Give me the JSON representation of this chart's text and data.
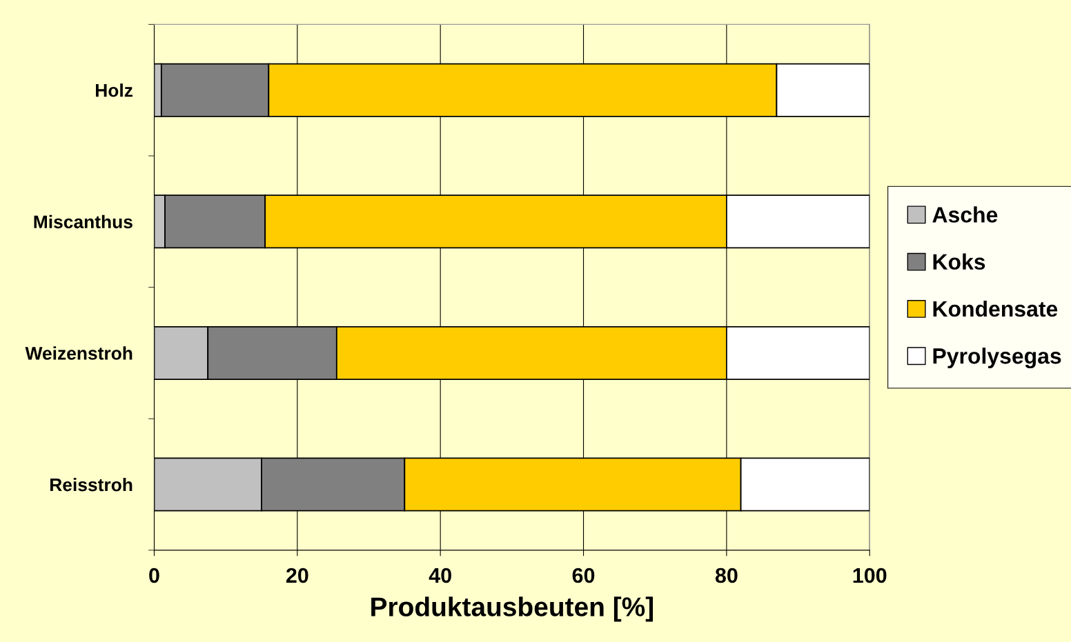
{
  "chart_data": {
    "type": "bar",
    "orientation": "horizontal",
    "stacked": true,
    "categories": [
      "Holz",
      "Miscanthus",
      "Weizenstroh",
      "Reisstroh"
    ],
    "series": [
      {
        "name": "Asche",
        "color": "#c0c0c0",
        "values": [
          1,
          1.5,
          7.5,
          15
        ]
      },
      {
        "name": "Koks",
        "color": "#808080",
        "values": [
          15,
          14,
          18,
          20
        ]
      },
      {
        "name": "Kondensate",
        "color": "#ffcc00",
        "values": [
          71,
          64.5,
          54.5,
          47
        ]
      },
      {
        "name": "Pyrolysegas",
        "color": "#ffffff",
        "values": [
          13,
          20,
          20,
          18
        ]
      }
    ],
    "xlabel": "Produktausbeuten [%]",
    "xlim": [
      0,
      100
    ],
    "xticks": [
      0,
      20,
      40,
      60,
      80,
      100
    ],
    "grid": "x",
    "legend": "right"
  }
}
